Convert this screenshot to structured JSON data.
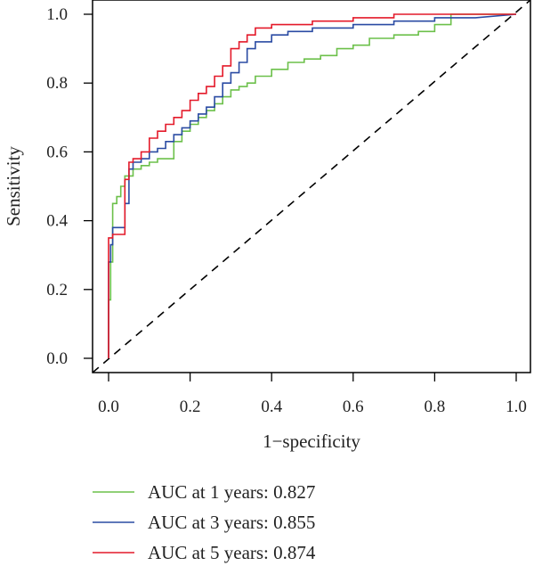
{
  "chart_data": {
    "type": "line",
    "title": "",
    "xlabel": "1−specificity",
    "ylabel": "Sensitivity",
    "xlim": [
      0,
      1
    ],
    "ylim": [
      0,
      1
    ],
    "x_ticks": [
      "0.0",
      "0.2",
      "0.4",
      "0.6",
      "0.8",
      "1.0"
    ],
    "y_ticks": [
      "0.0",
      "0.2",
      "0.4",
      "0.6",
      "0.8",
      "1.0"
    ],
    "grid": false,
    "legend_position": "bottom-left",
    "reference_line": {
      "style": "dashed",
      "color": "#000000",
      "x": [
        0,
        1
      ],
      "y": [
        0,
        1
      ]
    },
    "series": [
      {
        "name": "AUC at 1 years: 0.827",
        "color": "#6cc04a",
        "x": [
          0,
          0.0,
          0.005,
          0.005,
          0.01,
          0.01,
          0.02,
          0.02,
          0.03,
          0.03,
          0.04,
          0.04,
          0.06,
          0.06,
          0.08,
          0.08,
          0.1,
          0.1,
          0.12,
          0.12,
          0.16,
          0.16,
          0.18,
          0.18,
          0.2,
          0.2,
          0.22,
          0.22,
          0.24,
          0.24,
          0.26,
          0.26,
          0.28,
          0.28,
          0.3,
          0.3,
          0.32,
          0.32,
          0.34,
          0.34,
          0.36,
          0.36,
          0.4,
          0.4,
          0.44,
          0.44,
          0.48,
          0.48,
          0.52,
          0.52,
          0.56,
          0.56,
          0.6,
          0.6,
          0.64,
          0.64,
          0.7,
          0.7,
          0.76,
          0.76,
          0.8,
          0.8,
          0.84,
          0.84,
          0.9,
          1.0
        ],
        "y": [
          0,
          0.17,
          0.17,
          0.28,
          0.28,
          0.45,
          0.45,
          0.47,
          0.47,
          0.5,
          0.5,
          0.53,
          0.53,
          0.55,
          0.55,
          0.56,
          0.56,
          0.57,
          0.57,
          0.58,
          0.58,
          0.63,
          0.63,
          0.66,
          0.66,
          0.68,
          0.68,
          0.7,
          0.7,
          0.72,
          0.72,
          0.74,
          0.74,
          0.76,
          0.76,
          0.78,
          0.78,
          0.79,
          0.79,
          0.8,
          0.8,
          0.82,
          0.82,
          0.84,
          0.84,
          0.86,
          0.86,
          0.87,
          0.87,
          0.88,
          0.88,
          0.9,
          0.9,
          0.91,
          0.91,
          0.93,
          0.93,
          0.94,
          0.94,
          0.95,
          0.95,
          0.97,
          0.97,
          1.0,
          1.0,
          1.0
        ]
      },
      {
        "name": "AUC at 3 years: 0.855",
        "color": "#2a4ba3",
        "x": [
          0,
          0.0,
          0.005,
          0.005,
          0.01,
          0.01,
          0.04,
          0.04,
          0.05,
          0.05,
          0.06,
          0.06,
          0.08,
          0.08,
          0.1,
          0.1,
          0.12,
          0.12,
          0.14,
          0.14,
          0.16,
          0.16,
          0.18,
          0.18,
          0.2,
          0.2,
          0.22,
          0.22,
          0.24,
          0.24,
          0.26,
          0.26,
          0.28,
          0.28,
          0.3,
          0.3,
          0.32,
          0.32,
          0.34,
          0.34,
          0.36,
          0.36,
          0.4,
          0.4,
          0.44,
          0.44,
          0.5,
          0.5,
          0.6,
          0.6,
          0.7,
          0.7,
          0.8,
          0.8,
          0.9,
          1.0
        ],
        "y": [
          0,
          0.28,
          0.28,
          0.33,
          0.33,
          0.38,
          0.38,
          0.45,
          0.45,
          0.55,
          0.55,
          0.57,
          0.57,
          0.58,
          0.58,
          0.6,
          0.6,
          0.61,
          0.61,
          0.63,
          0.63,
          0.65,
          0.65,
          0.67,
          0.67,
          0.69,
          0.69,
          0.71,
          0.71,
          0.73,
          0.73,
          0.76,
          0.76,
          0.8,
          0.8,
          0.83,
          0.83,
          0.86,
          0.86,
          0.9,
          0.9,
          0.92,
          0.92,
          0.94,
          0.94,
          0.95,
          0.95,
          0.96,
          0.96,
          0.97,
          0.97,
          0.98,
          0.98,
          0.99,
          0.99,
          1.0
        ]
      },
      {
        "name": "AUC at 5 years: 0.874",
        "color": "#e41a2a",
        "x": [
          0,
          0.0,
          0.01,
          0.01,
          0.04,
          0.04,
          0.05,
          0.05,
          0.06,
          0.06,
          0.08,
          0.08,
          0.1,
          0.1,
          0.12,
          0.12,
          0.14,
          0.14,
          0.16,
          0.16,
          0.18,
          0.18,
          0.2,
          0.2,
          0.22,
          0.22,
          0.24,
          0.24,
          0.26,
          0.26,
          0.28,
          0.28,
          0.3,
          0.3,
          0.32,
          0.32,
          0.34,
          0.34,
          0.36,
          0.36,
          0.4,
          0.4,
          0.5,
          0.5,
          0.6,
          0.6,
          0.7,
          0.7,
          0.8,
          0.8,
          0.9,
          1.0
        ],
        "y": [
          0,
          0.35,
          0.35,
          0.36,
          0.36,
          0.52,
          0.52,
          0.57,
          0.57,
          0.58,
          0.58,
          0.6,
          0.6,
          0.64,
          0.64,
          0.66,
          0.66,
          0.68,
          0.68,
          0.7,
          0.7,
          0.72,
          0.72,
          0.75,
          0.75,
          0.77,
          0.77,
          0.79,
          0.79,
          0.82,
          0.82,
          0.85,
          0.85,
          0.9,
          0.9,
          0.92,
          0.92,
          0.94,
          0.94,
          0.96,
          0.96,
          0.97,
          0.97,
          0.98,
          0.98,
          0.99,
          0.99,
          1.0,
          1.0,
          1.0,
          1.0,
          1.0
        ]
      }
    ]
  }
}
